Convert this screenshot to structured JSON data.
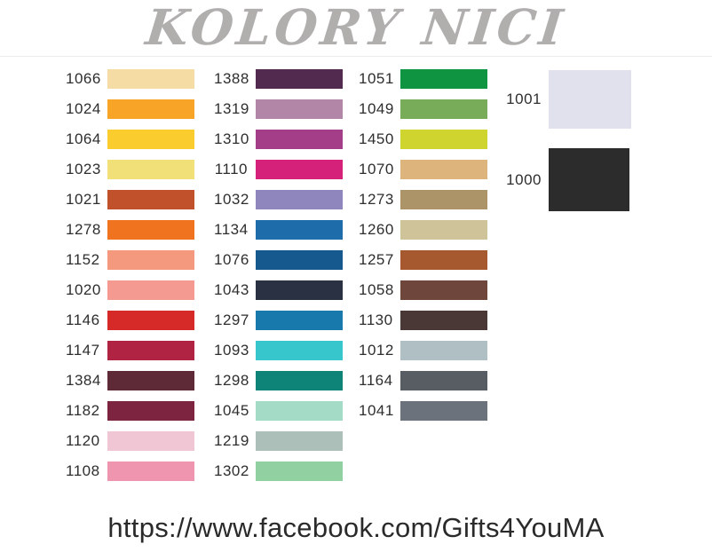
{
  "title": "KOLORY NICI",
  "title_color": "#b1aeae",
  "footer": {
    "url": "https://www.facebook.com/Gifts4YouMA"
  },
  "chart_data": {
    "type": "table",
    "title": "KOLORY NICI",
    "description": "Thread color chart: color code with swatch",
    "columns": [
      {
        "items": [
          {
            "code": "1066",
            "color": "#f4dca4"
          },
          {
            "code": "1024",
            "color": "#f8a426"
          },
          {
            "code": "1064",
            "color": "#facc2d"
          },
          {
            "code": "1023",
            "color": "#f0e077"
          },
          {
            "code": "1021",
            "color": "#c0512b"
          },
          {
            "code": "1278",
            "color": "#f0741f"
          },
          {
            "code": "1152",
            "color": "#f4997e"
          },
          {
            "code": "1020",
            "color": "#f49a90"
          },
          {
            "code": "1146",
            "color": "#d62a28"
          },
          {
            "code": "1147",
            "color": "#b02342"
          },
          {
            "code": "1384",
            "color": "#5f2a37"
          },
          {
            "code": "1182",
            "color": "#7c2440"
          },
          {
            "code": "1120",
            "color": "#f0c6d4"
          },
          {
            "code": "1108",
            "color": "#f095af"
          }
        ]
      },
      {
        "items": [
          {
            "code": "1388",
            "color": "#532a4f"
          },
          {
            "code": "1319",
            "color": "#b286a6"
          },
          {
            "code": "1310",
            "color": "#a53e88"
          },
          {
            "code": "1110",
            "color": "#d6217b"
          },
          {
            "code": "1032",
            "color": "#8e86bc"
          },
          {
            "code": "1134",
            "color": "#1e6daa"
          },
          {
            "code": "1076",
            "color": "#16598f"
          },
          {
            "code": "1043",
            "color": "#2a3143"
          },
          {
            "code": "1297",
            "color": "#1879ac"
          },
          {
            "code": "1093",
            "color": "#36c6cc"
          },
          {
            "code": "1298",
            "color": "#0e8478"
          },
          {
            "code": "1045",
            "color": "#a4dbc7"
          },
          {
            "code": "1219",
            "color": "#adbfb9"
          },
          {
            "code": "1302",
            "color": "#91d0a0"
          }
        ]
      },
      {
        "items": [
          {
            "code": "1051",
            "color": "#0f9442"
          },
          {
            "code": "1049",
            "color": "#79ac58"
          },
          {
            "code": "1450",
            "color": "#cfd42f"
          },
          {
            "code": "1070",
            "color": "#ddb47b"
          },
          {
            "code": "1273",
            "color": "#ac9468"
          },
          {
            "code": "1260",
            "color": "#cec399"
          },
          {
            "code": "1257",
            "color": "#a6582e"
          },
          {
            "code": "1058",
            "color": "#6f463b"
          },
          {
            "code": "1130",
            "color": "#493835"
          },
          {
            "code": "1012",
            "color": "#afbfc4"
          },
          {
            "code": "1164",
            "color": "#585d64"
          },
          {
            "code": "1041",
            "color": "#6c727c"
          }
        ]
      }
    ],
    "large_swatches": [
      {
        "code": "1001",
        "color": "#e0e1ed"
      },
      {
        "code": "1000",
        "color": "#2b2c2b"
      }
    ]
  }
}
